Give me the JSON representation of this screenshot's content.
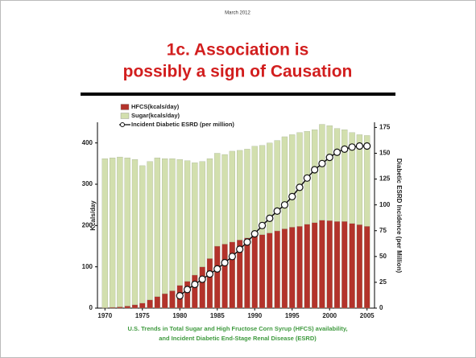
{
  "header": {
    "date": "March 2012",
    "title_lines": [
      "1c. Association is",
      "possibly a sign of Causation"
    ]
  },
  "chart_data": {
    "type": "stacked-bar-line",
    "x": [
      1970,
      1971,
      1972,
      1973,
      1974,
      1975,
      1976,
      1977,
      1978,
      1979,
      1980,
      1981,
      1982,
      1983,
      1984,
      1985,
      1986,
      1987,
      1988,
      1989,
      1990,
      1991,
      1992,
      1993,
      1994,
      1995,
      1996,
      1997,
      1998,
      1999,
      2000,
      2001,
      2002,
      2003,
      2004,
      2005
    ],
    "xlim": [
      1969,
      2006
    ],
    "xticks": [
      1970,
      1975,
      1980,
      1985,
      1990,
      1995,
      2000,
      2005
    ],
    "ylim": [
      0,
      450
    ],
    "yticks": [
      0,
      100,
      200,
      300,
      400
    ],
    "ylabel": "Kcals/day",
    "y2lim": [
      0,
      180
    ],
    "y2ticks": [
      0,
      25,
      50,
      75,
      100,
      125,
      150,
      175
    ],
    "y2label": "Diabetic ESRD Incidence (per Million)",
    "series": [
      {
        "name": "HFCS(kcals/day)",
        "color": "#b3332b",
        "kind": "bar",
        "values": [
          1,
          2,
          3,
          5,
          8,
          12,
          20,
          28,
          35,
          42,
          55,
          65,
          80,
          100,
          120,
          150,
          155,
          160,
          165,
          170,
          175,
          178,
          182,
          187,
          192,
          196,
          198,
          203,
          207,
          213,
          212,
          210,
          210,
          205,
          202,
          198
        ]
      },
      {
        "name": "Sugar(kcals/day)",
        "color": "#d2dfae",
        "kind": "bar",
        "values": [
          361,
          362,
          363,
          359,
          352,
          333,
          335,
          336,
          327,
          320,
          305,
          292,
          272,
          255,
          242,
          225,
          217,
          220,
          217,
          215,
          217,
          216,
          218,
          219,
          223,
          224,
          227,
          225,
          225,
          232,
          230,
          225,
          222,
          220,
          218,
          220
        ]
      },
      {
        "name": "Incident Diabetic ESRD (per million)",
        "color": "#111111",
        "kind": "line",
        "axis": "y2",
        "values": [
          null,
          null,
          null,
          null,
          null,
          null,
          null,
          null,
          null,
          null,
          12,
          18,
          23,
          28,
          33,
          38,
          44,
          50,
          57,
          64,
          72,
          80,
          87,
          94,
          100,
          108,
          117,
          126,
          134,
          140,
          146,
          151,
          154,
          156,
          157,
          157
        ]
      }
    ]
  },
  "caption": [
    "U.S. Trends in Total Sugar and High Fructose Corn Syrup (HFCS) availability,",
    "and Incident Diabetic End-Stage Renal Disease (ESRD)"
  ]
}
